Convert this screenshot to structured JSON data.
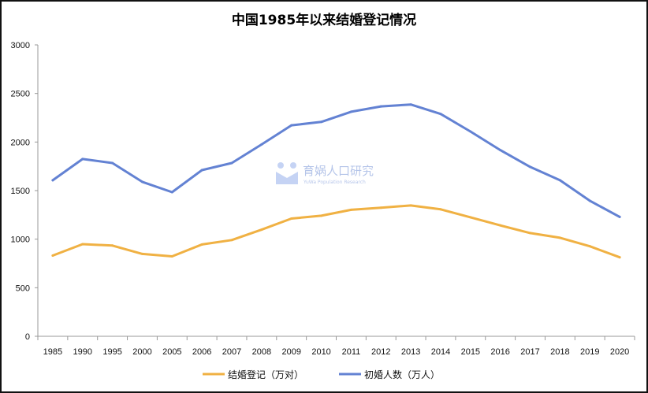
{
  "chart_data": {
    "type": "line",
    "title": "中国1985年以来结婚登记情况",
    "categories": [
      "1985",
      "1990",
      "1995",
      "2000",
      "2005",
      "2006",
      "2007",
      "2008",
      "2009",
      "2010",
      "2011",
      "2012",
      "2013",
      "2014",
      "2015",
      "2016",
      "2017",
      "2018",
      "2019",
      "2020"
    ],
    "series": [
      {
        "name": "结婚登记（万对）",
        "color": "#F0B143",
        "values": [
          831,
          949,
          934,
          848,
          823,
          945,
          991,
          1098,
          1212,
          1241,
          1302,
          1324,
          1347,
          1307,
          1225,
          1142,
          1063,
          1014,
          927,
          813
        ]
      },
      {
        "name": "初婚人数（万人）",
        "color": "#6382D3",
        "values": [
          1606,
          1825,
          1784,
          1590,
          1484,
          1711,
          1784,
          1975,
          2172,
          2207,
          2312,
          2367,
          2386,
          2289,
          2108,
          1917,
          1744,
          1606,
          1395,
          1229
        ]
      }
    ],
    "yticks": [
      "0",
      "500",
      "1000",
      "1500",
      "2000",
      "2500",
      "3000"
    ],
    "ylim": [
      0,
      3000
    ],
    "xlabel": "",
    "ylabel": "",
    "grid": false,
    "legend": "bottom"
  },
  "watermark": {
    "text": "育娲人口研究",
    "subtext": "YuWa Population Research"
  }
}
